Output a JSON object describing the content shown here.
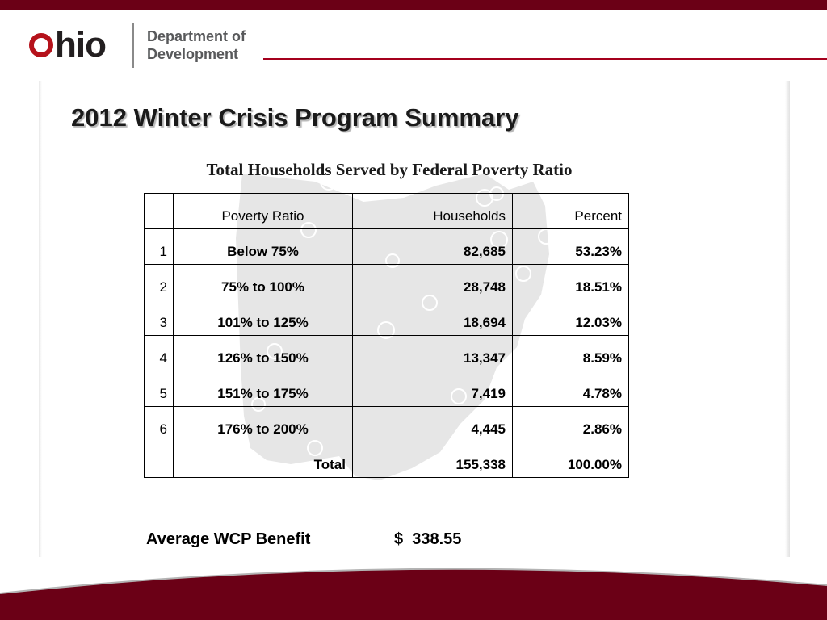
{
  "header": {
    "logo_text": "hio",
    "logo_letter": "O",
    "department_line1": "Department of",
    "department_line2": "Development",
    "brand_color": "#6b0016",
    "accent_line_color": "#a4001d"
  },
  "slide": {
    "title": "2012 Winter Crisis Program Summary",
    "table_caption": "Total Households Served by Federal Poverty Ratio"
  },
  "table": {
    "headers": [
      "",
      "Poverty Ratio",
      "Households",
      "Percent"
    ],
    "rows": [
      {
        "index": "1",
        "ratio": "Below 75%",
        "households": "82,685",
        "percent": "53.23%"
      },
      {
        "index": "2",
        "ratio": "75% to 100%",
        "households": "28,748",
        "percent": "18.51%"
      },
      {
        "index": "3",
        "ratio": "101% to 125%",
        "households": "18,694",
        "percent": "12.03%"
      },
      {
        "index": "4",
        "ratio": "126% to 150%",
        "households": "13,347",
        "percent": "8.59%"
      },
      {
        "index": "5",
        "ratio": "151% to 175%",
        "households": "7,419",
        "percent": "4.78%"
      },
      {
        "index": "6",
        "ratio": "176% to 200%",
        "households": "4,445",
        "percent": "2.86%"
      }
    ],
    "total": {
      "index": "",
      "label": "Total",
      "households": "155,338",
      "percent": "100.00%"
    }
  },
  "summary": {
    "avg_label": "Average WCP Benefit",
    "avg_value": "$  338.55"
  },
  "icons": {
    "logo": "ohio-logo-icon",
    "watermark": "ohio-state-map-watermark-icon"
  }
}
